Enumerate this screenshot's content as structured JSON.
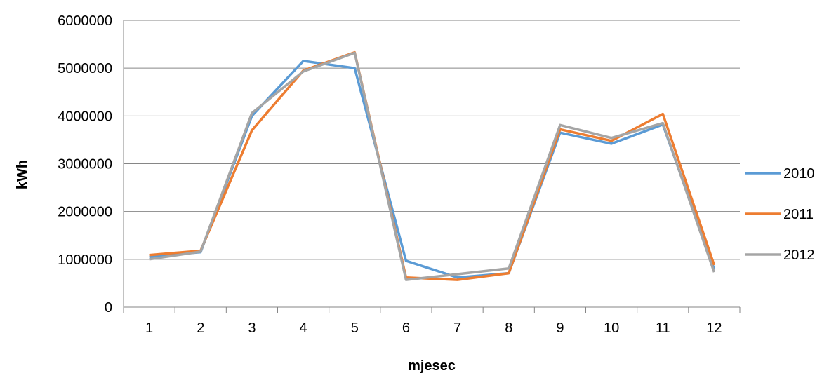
{
  "chart_data": {
    "type": "line",
    "title": "",
    "xlabel": "mjesec",
    "ylabel": "kWh",
    "x": [
      "1",
      "2",
      "3",
      "4",
      "5",
      "6",
      "7",
      "8",
      "9",
      "10",
      "11",
      "12"
    ],
    "ylim": [
      0,
      6000000
    ],
    "yticks": [
      "0",
      "1000000",
      "2000000",
      "3000000",
      "4000000",
      "5000000",
      "6000000"
    ],
    "grid": "horizontal",
    "legend_position": "right",
    "series": [
      {
        "name": "2010",
        "color": "#5B9BD5",
        "values": [
          1050000,
          1150000,
          4000000,
          5150000,
          5000000,
          970000,
          620000,
          710000,
          3650000,
          3420000,
          3820000,
          800000
        ]
      },
      {
        "name": "2011",
        "color": "#ED7D31",
        "values": [
          1090000,
          1180000,
          3700000,
          4950000,
          5330000,
          620000,
          570000,
          710000,
          3720000,
          3480000,
          4040000,
          880000
        ]
      },
      {
        "name": "2012",
        "color": "#A5A5A5",
        "values": [
          1000000,
          1160000,
          4060000,
          4930000,
          5320000,
          570000,
          690000,
          810000,
          3810000,
          3540000,
          3850000,
          730000
        ]
      }
    ]
  }
}
